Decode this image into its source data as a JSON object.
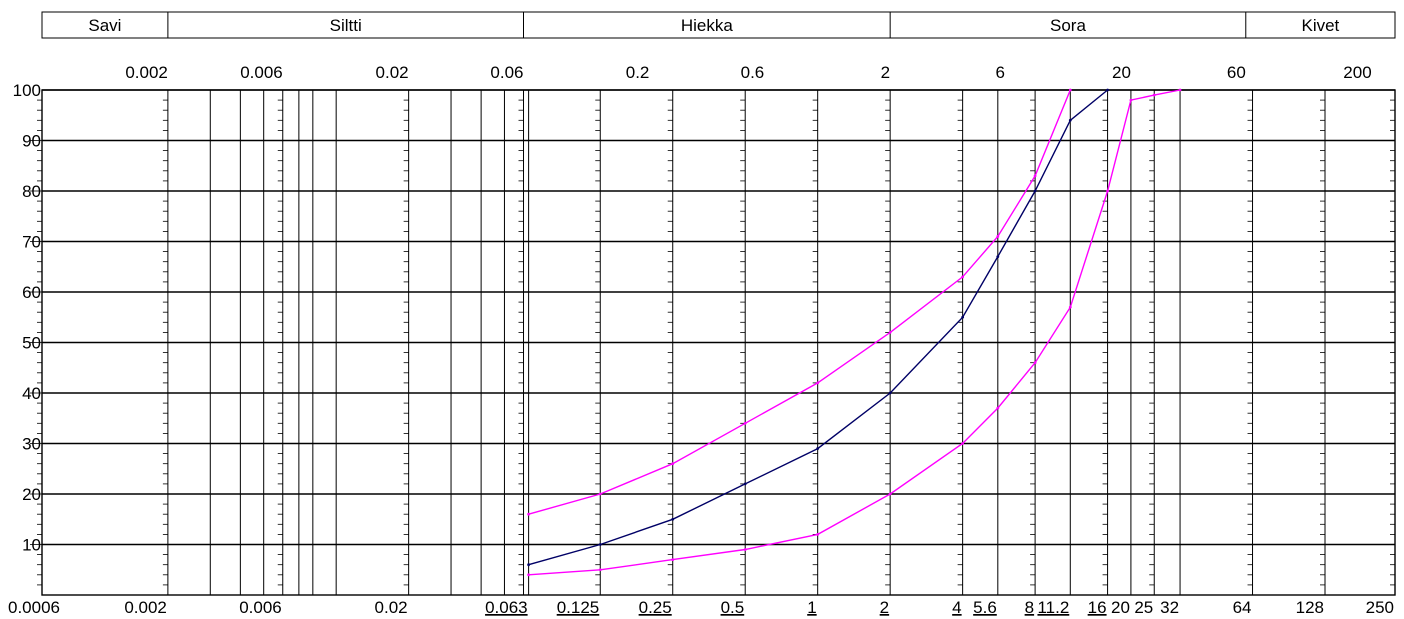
{
  "chart_data": {
    "type": "line",
    "title": "",
    "xlabel": "",
    "ylabel": "",
    "x_scale": "log",
    "xlim": [
      0.0006,
      250
    ],
    "ylim": [
      0,
      100
    ],
    "grid": true,
    "soil_classes": [
      {
        "name": "Savi",
        "from": 0.0006,
        "to": 0.002
      },
      {
        "name": "Siltti",
        "from": 0.002,
        "to": 0.06
      },
      {
        "name": "Hiekka",
        "from": 0.06,
        "to": 2
      },
      {
        "name": "Sora",
        "from": 2,
        "to": 60
      },
      {
        "name": "Kivet",
        "from": 60,
        "to": 250
      }
    ],
    "top_ticks": [
      "0.002",
      "0.006",
      "0.02",
      "0.06",
      "0.2",
      "0.6",
      "2",
      "6",
      "20",
      "60",
      "200"
    ],
    "y_ticks": [
      "100",
      "90",
      "80",
      "70",
      "60",
      "50",
      "40",
      "30",
      "20",
      "10"
    ],
    "bottom_ticks": [
      {
        "label": "0.0006",
        "underline": false
      },
      {
        "label": "0.002",
        "underline": false
      },
      {
        "label": "0.006",
        "underline": false
      },
      {
        "label": "0.02",
        "underline": false
      },
      {
        "label": "0.063",
        "underline": true
      },
      {
        "label": "0.125",
        "underline": true
      },
      {
        "label": "0.25",
        "underline": true
      },
      {
        "label": "0.5",
        "underline": true
      },
      {
        "label": "1",
        "underline": true
      },
      {
        "label": "2",
        "underline": true
      },
      {
        "label": "4",
        "underline": true
      },
      {
        "label": "5.6",
        "underline": true
      },
      {
        "label": "8",
        "underline": true
      },
      {
        "label": "11.2",
        "underline": true
      },
      {
        "label": "16",
        "underline": true
      },
      {
        "label": "20",
        "underline": false
      },
      {
        "label": "25",
        "underline": false
      },
      {
        "label": "32",
        "underline": false
      },
      {
        "label": "64",
        "underline": false
      },
      {
        "label": "128",
        "underline": false
      },
      {
        "label": "250",
        "underline": false
      }
    ],
    "series": [
      {
        "color": "#ff00ff",
        "x": [
          0.063,
          0.125,
          0.25,
          0.5,
          1,
          2,
          4,
          5.6,
          8,
          11.2
        ],
        "y": [
          16,
          20,
          26,
          34,
          42,
          52,
          63,
          71,
          83,
          100
        ]
      },
      {
        "color": "#000066",
        "x": [
          0.063,
          0.125,
          0.25,
          0.5,
          1,
          2,
          4,
          5.6,
          8,
          11.2,
          16
        ],
        "y": [
          6,
          10,
          15,
          22,
          29,
          40,
          55,
          67,
          80,
          94,
          100
        ]
      },
      {
        "color": "#ff00ff",
        "x": [
          0.063,
          0.125,
          0.25,
          0.5,
          1,
          2,
          4,
          5.6,
          8,
          11.2,
          16,
          20,
          25,
          32
        ],
        "y": [
          4,
          5,
          7,
          9,
          12,
          20,
          30,
          37,
          46,
          57,
          80,
          98,
          99,
          100
        ]
      }
    ]
  }
}
